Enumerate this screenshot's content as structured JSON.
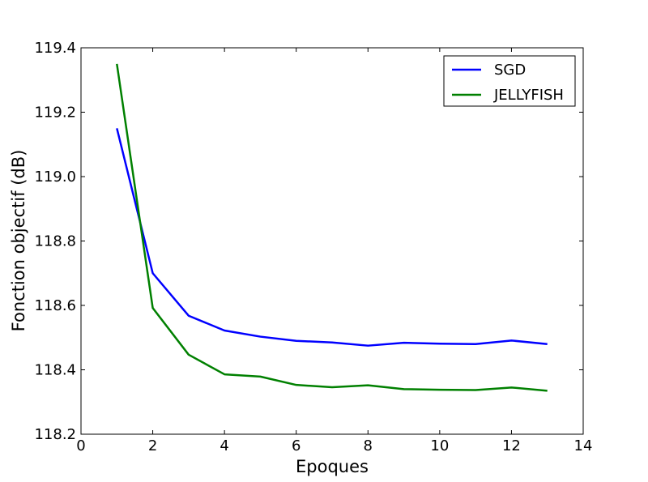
{
  "chart_data": {
    "type": "line",
    "xlabel": "Epoques",
    "ylabel": "Fonction objectif (dB)",
    "xlim": [
      0,
      14
    ],
    "ylim": [
      118.2,
      119.4
    ],
    "xticks": [
      "0",
      "2",
      "4",
      "6",
      "8",
      "10",
      "12",
      "14"
    ],
    "yticks": [
      "118.2",
      "118.4",
      "118.6",
      "118.8",
      "119.0",
      "119.2",
      "119.4"
    ],
    "grid": false,
    "legend_position": "top-right",
    "x": [
      1,
      2,
      3,
      4,
      5,
      6,
      7,
      8,
      9,
      10,
      11,
      12,
      13
    ],
    "series": [
      {
        "name": "SGD",
        "color": "#0000ff",
        "values": [
          119.15,
          118.7,
          118.568,
          118.522,
          118.503,
          118.49,
          118.485,
          118.475,
          118.484,
          118.481,
          118.48,
          118.491,
          118.48
        ]
      },
      {
        "name": "JELLYFISH",
        "color": "#008000",
        "values": [
          119.35,
          118.592,
          118.447,
          118.386,
          118.379,
          118.353,
          118.346,
          118.352,
          118.34,
          118.338,
          118.337,
          118.345,
          118.335
        ]
      }
    ]
  }
}
